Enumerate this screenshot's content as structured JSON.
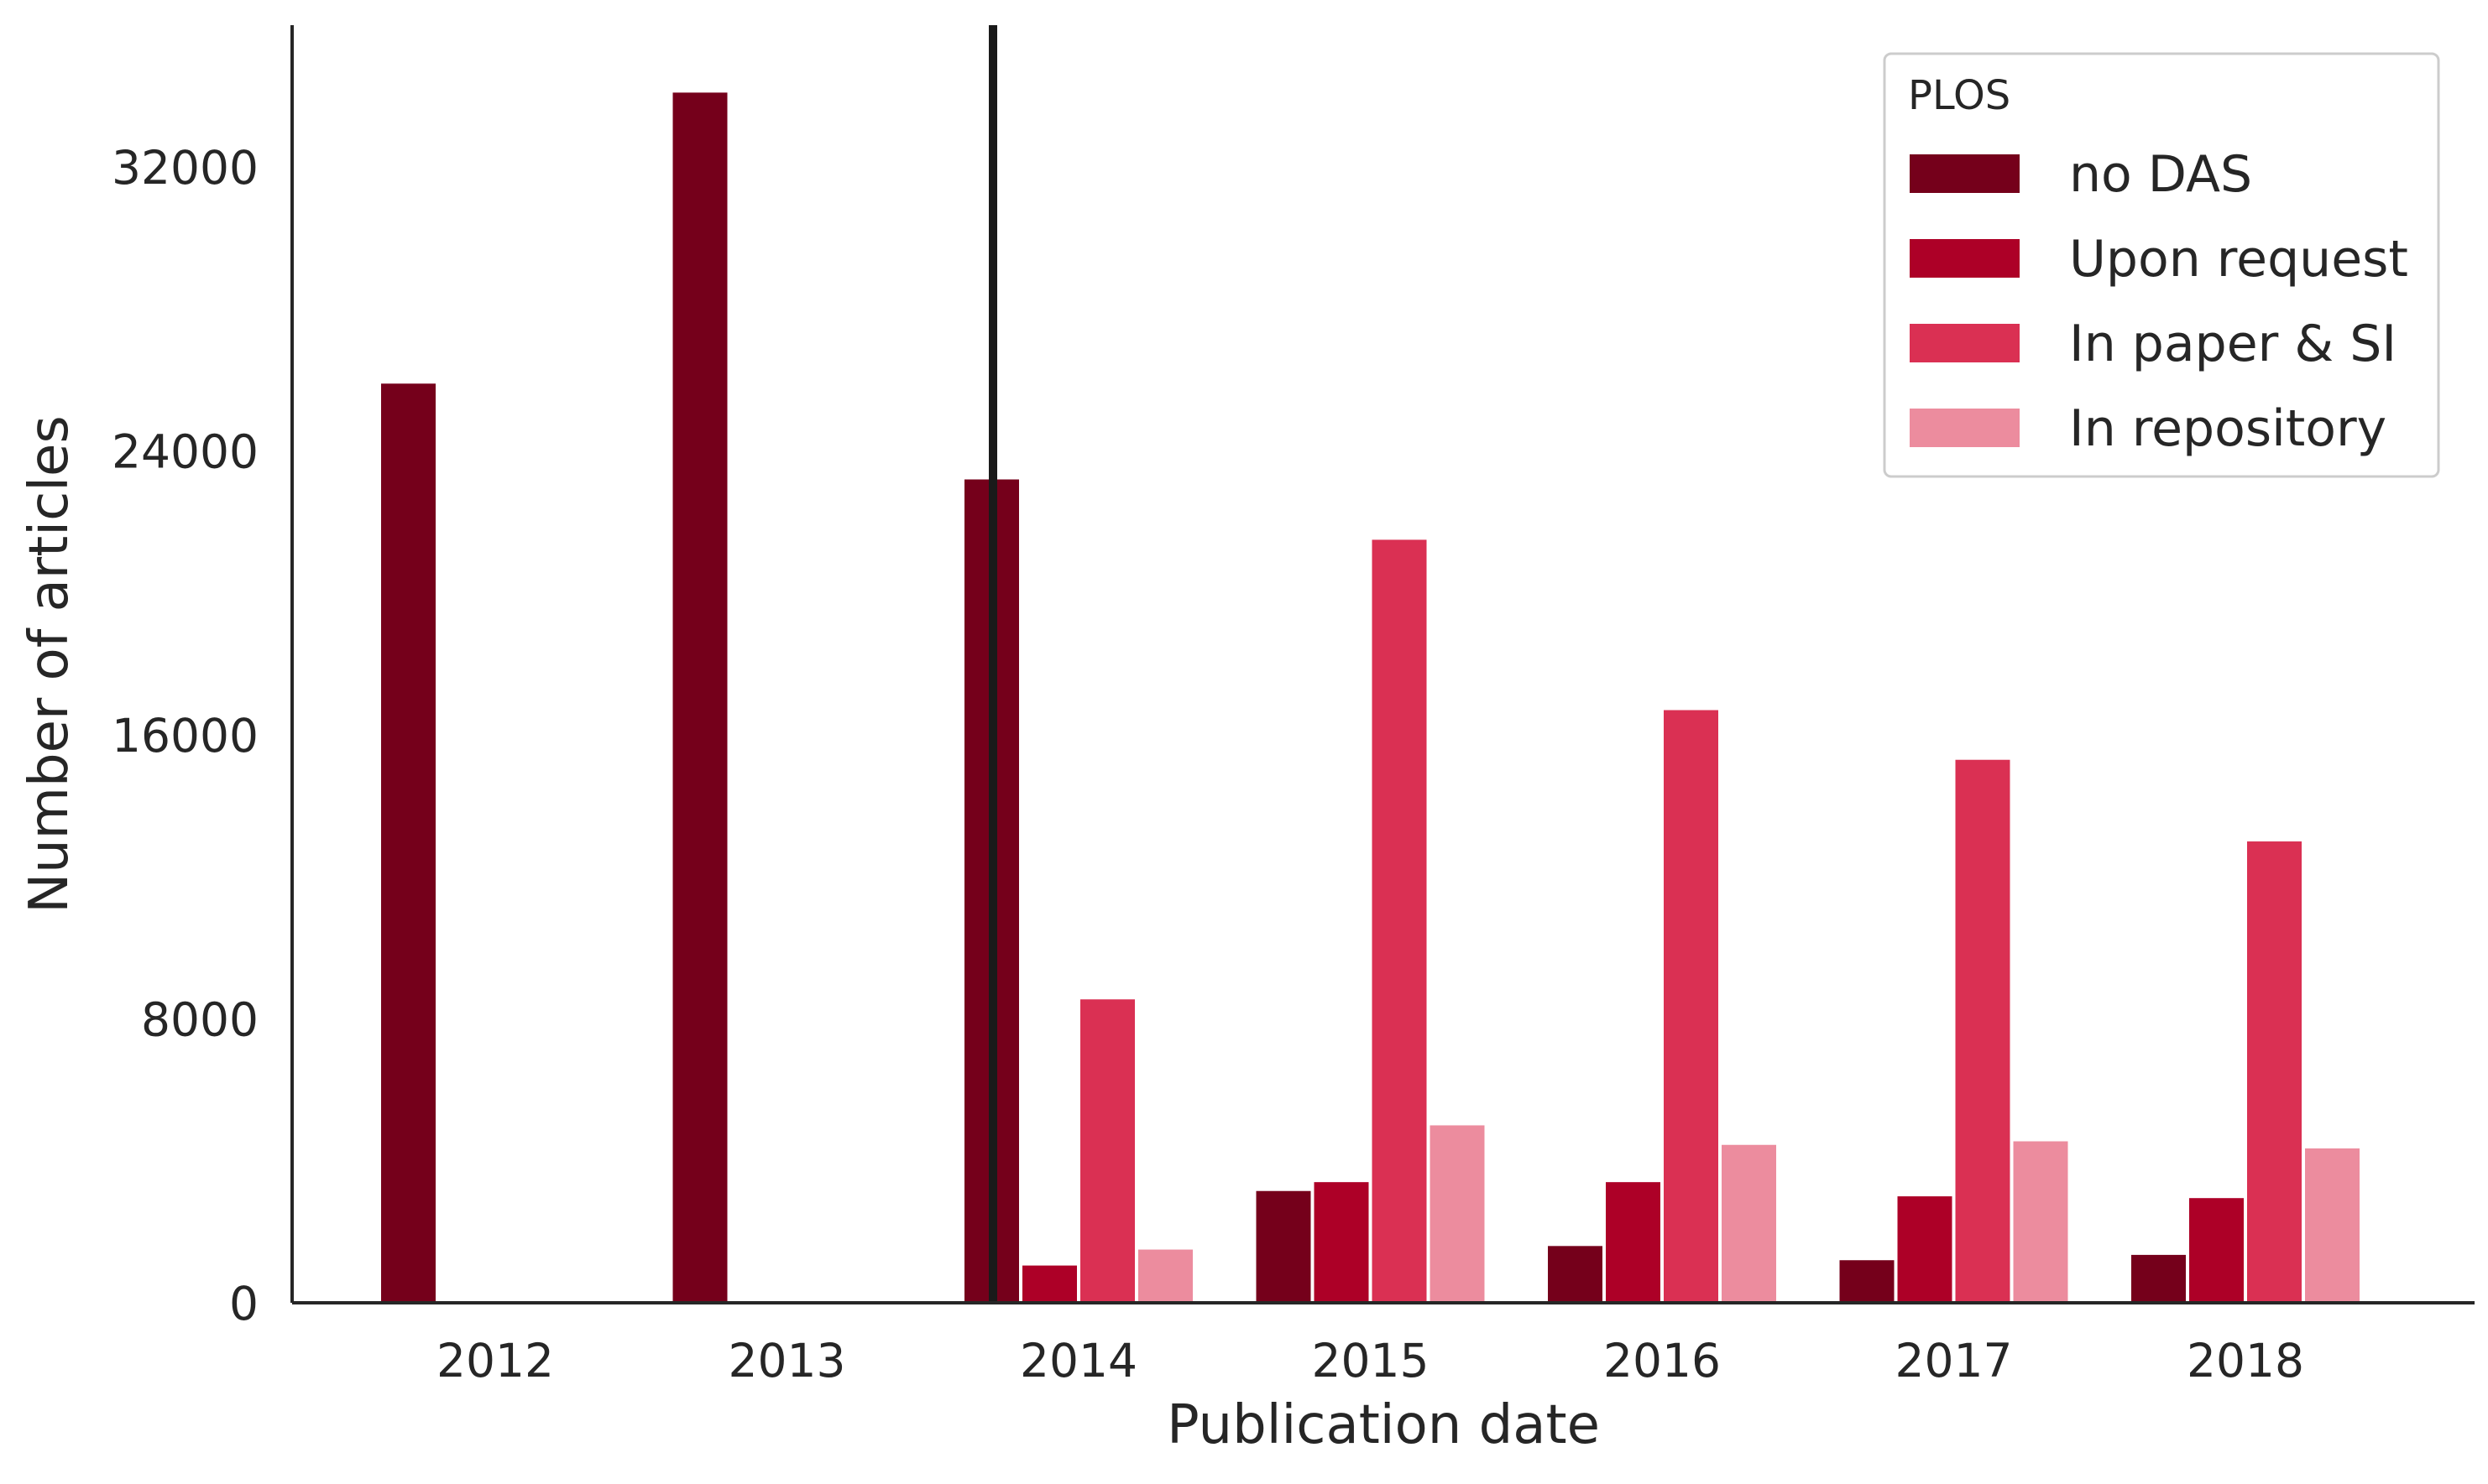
{
  "chart_data": {
    "type": "bar",
    "title": "",
    "xlabel": "Publication date",
    "ylabel": "Number of articles",
    "categories": [
      "2012",
      "2013",
      "2014",
      "2015",
      "2016",
      "2017",
      "2018"
    ],
    "series": [
      {
        "name": "no DAS",
        "color": "#75001b",
        "values": [
          25900,
          34100,
          23200,
          3150,
          1600,
          1200,
          1350
        ]
      },
      {
        "name": "Upon request",
        "color": "#ad0027",
        "values": [
          0,
          0,
          1050,
          3400,
          3400,
          3000,
          2950
        ]
      },
      {
        "name": "In paper & SI",
        "color": "#da3053",
        "values": [
          0,
          0,
          8550,
          21500,
          16700,
          15300,
          13000
        ]
      },
      {
        "name": "In repository",
        "color": "#ec8c9e",
        "values": [
          0,
          0,
          1500,
          5000,
          4450,
          4550,
          4350
        ]
      }
    ],
    "ylim": [
      0,
      36000
    ],
    "yticks": [
      0,
      8000,
      16000,
      24000,
      32000
    ],
    "legend": {
      "title": "PLOS",
      "position": "top-right"
    },
    "vertical_line": {
      "x_category": "2014",
      "offset_bars": -0.3
    },
    "grid": false
  }
}
